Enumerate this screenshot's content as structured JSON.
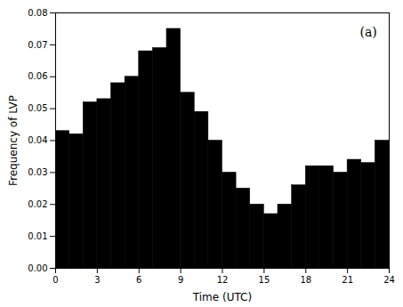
{
  "chart_data": {
    "type": "histogram",
    "xlabel": "Time (UTC)",
    "ylabel": "Frequency of LVP",
    "bins": [
      0,
      1,
      2,
      3,
      4,
      5,
      6,
      7,
      8,
      9,
      10,
      11,
      12,
      13,
      14,
      15,
      16,
      17,
      18,
      19,
      20,
      21,
      22,
      23,
      24
    ],
    "values": [
      0.043,
      0.042,
      0.052,
      0.053,
      0.058,
      0.06,
      0.068,
      0.069,
      0.075,
      0.055,
      0.049,
      0.04,
      0.03,
      0.025,
      0.02,
      0.017,
      0.02,
      0.026,
      0.032,
      0.032,
      0.03,
      0.034,
      0.033,
      0.04
    ],
    "color": "#000000",
    "xlim": [
      0,
      24
    ],
    "ylim": [
      0,
      0.08
    ],
    "xticks": [
      0,
      3,
      6,
      9,
      12,
      15,
      18,
      21,
      24
    ],
    "yticks": [
      {
        "value": 0,
        "label": "0.00"
      },
      0.01,
      0.02,
      0.03,
      0.04,
      0.05,
      0.06,
      0.07,
      0.08
    ],
    "grid": false,
    "annotations": [
      {
        "text": "(a)",
        "x": 22.5,
        "y": 0.074
      }
    ]
  }
}
